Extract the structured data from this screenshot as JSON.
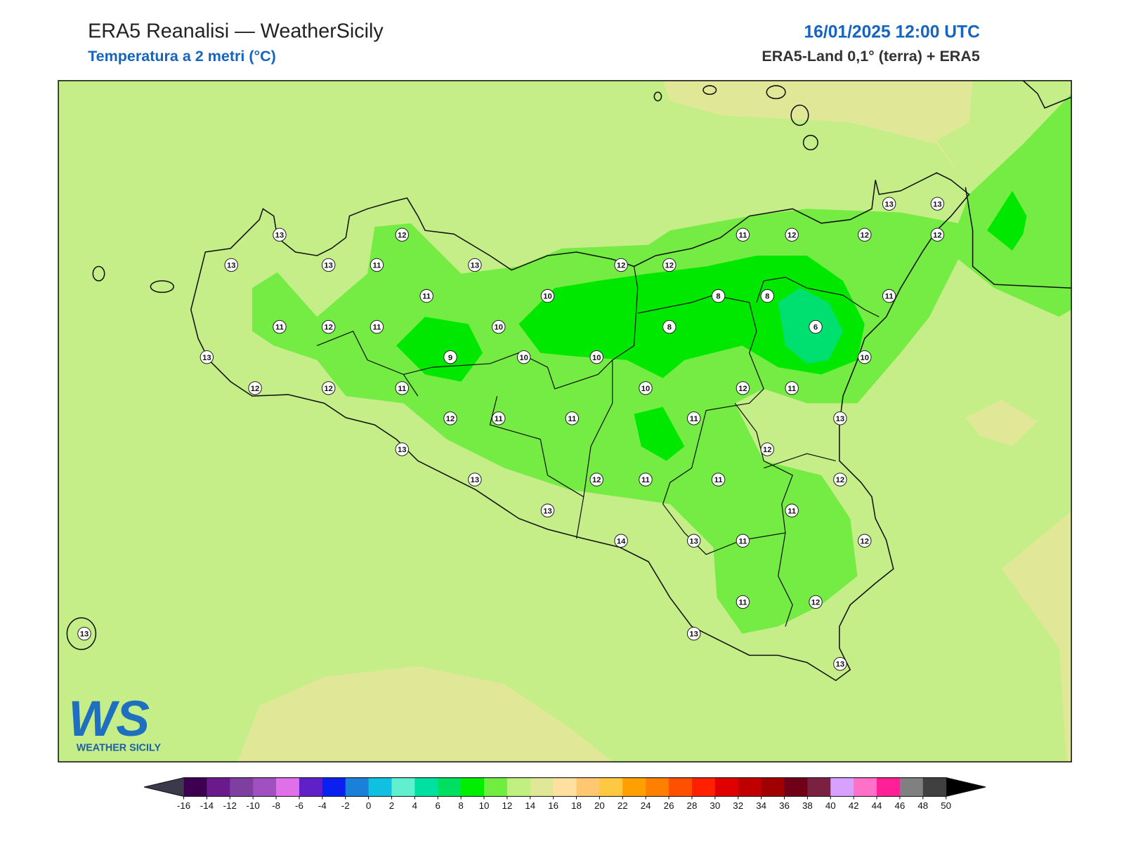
{
  "header": {
    "title": "ERA5 Reanalisi — WeatherSicily",
    "subtitle": "Temperatura a 2 metri (°C)",
    "datetime": "16/01/2025 12:00 UTC",
    "source": "ERA5-Land 0,1° (terra) + ERA5"
  },
  "stations": [
    13,
    12,
    13,
    13,
    11,
    13,
    12,
    12,
    11,
    12,
    12,
    12,
    13,
    13,
    11,
    10,
    8,
    8,
    11,
    11,
    12,
    11,
    10,
    8,
    6,
    13,
    9,
    10,
    10,
    10,
    12,
    12,
    11,
    10,
    12,
    11,
    12,
    11,
    11,
    11,
    13,
    13,
    12,
    13,
    12,
    11,
    11,
    12,
    13,
    11,
    14,
    13,
    11,
    12,
    11,
    12,
    13,
    13,
    13
  ],
  "colorbar": {
    "ticks": [
      -16,
      -14,
      -12,
      -10,
      -8,
      -6,
      -4,
      -2,
      0,
      2,
      4,
      6,
      8,
      10,
      12,
      14,
      16,
      18,
      20,
      22,
      24,
      26,
      28,
      30,
      32,
      34,
      36,
      38,
      40,
      42,
      44,
      46,
      48,
      50
    ],
    "colors": [
      "#3d0050",
      "#6a1a8a",
      "#7f3fa0",
      "#a050c0",
      "#e070e8",
      "#6020c8",
      "#0a20f0",
      "#1a80d8",
      "#10c0e0",
      "#60f0d0",
      "#00e0a0",
      "#00e060",
      "#00ee00",
      "#70ee40",
      "#c0f080",
      "#e0e898",
      "#ffe0a0",
      "#ffc870",
      "#ffc840",
      "#ffa000",
      "#ff8000",
      "#ff5000",
      "#ff2000",
      "#e00000",
      "#c00000",
      "#a00000",
      "#700018",
      "#7a2040",
      "#d8a0ff",
      "#ff70c8",
      "#ff2098",
      "#808080",
      "#404040"
    ],
    "under": "#3a3a4a",
    "over": "#000000"
  },
  "logo": {
    "mark": "WS",
    "text": "WEATHER SICILY"
  }
}
